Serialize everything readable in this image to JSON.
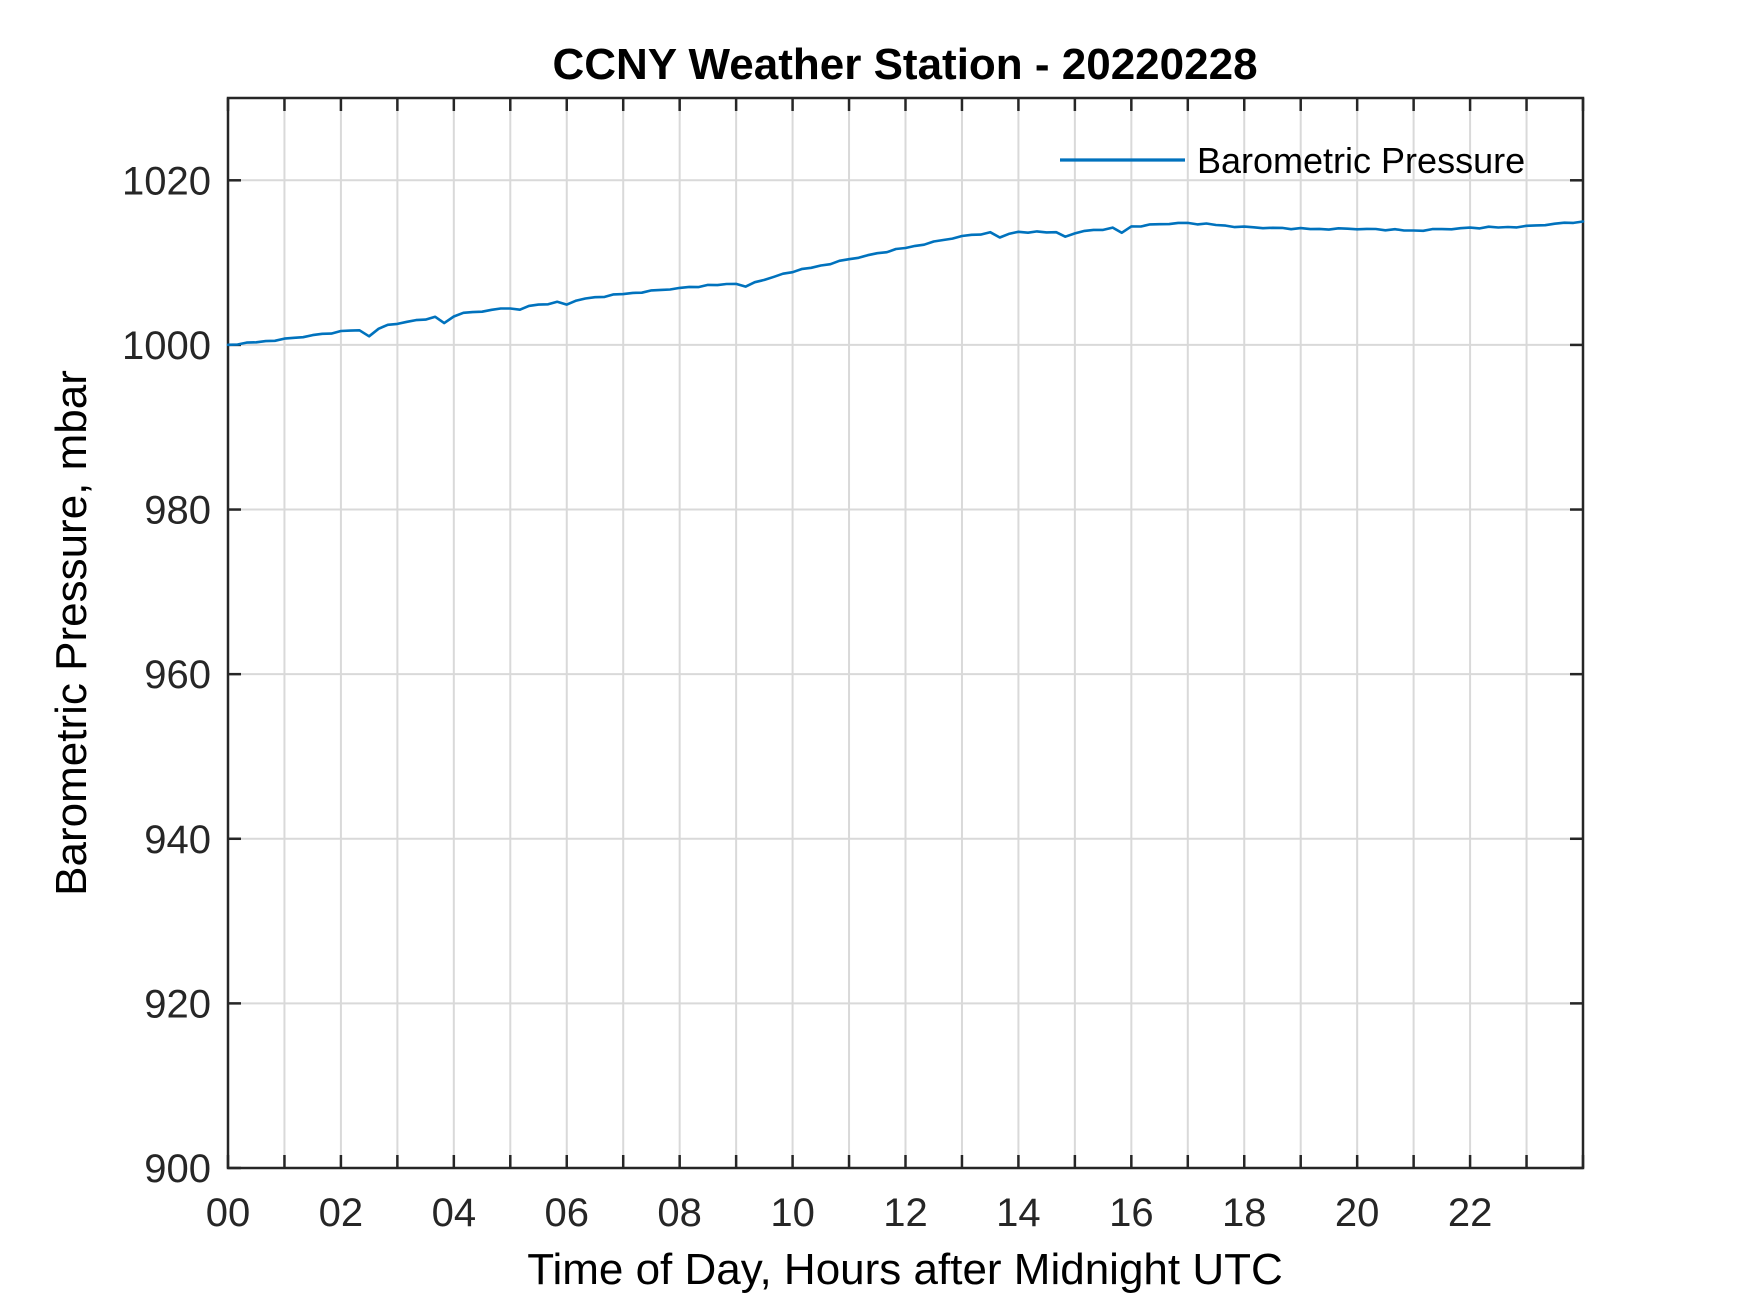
{
  "page": {
    "background_color": "#ffffff",
    "axes_color": "#262626",
    "grid_color": "#d9d9d9"
  },
  "chart_data": {
    "type": "line",
    "title": "CCNY Weather Station - 20220228",
    "xlabel": "Time of Day, Hours after Midnight UTC",
    "ylabel": "Barometric Pressure, mbar",
    "xlim": [
      0,
      24
    ],
    "ylim": [
      900,
      1030
    ],
    "grid": true,
    "legend_position": "top-right-inside",
    "x_tick_values": [
      0,
      1,
      2,
      3,
      4,
      5,
      6,
      7,
      8,
      9,
      10,
      11,
      12,
      13,
      14,
      15,
      16,
      17,
      18,
      19,
      20,
      21,
      22,
      23,
      24
    ],
    "x_label_ticks": {
      "values": [
        0,
        2,
        4,
        6,
        8,
        10,
        12,
        14,
        16,
        18,
        20,
        22
      ],
      "labels": [
        "00",
        "02",
        "04",
        "06",
        "08",
        "10",
        "12",
        "14",
        "16",
        "18",
        "20",
        "22"
      ]
    },
    "y_ticks": {
      "values": [
        900,
        920,
        940,
        960,
        980,
        1000,
        1020
      ],
      "labels": [
        "900",
        "920",
        "940",
        "960",
        "980",
        "1000",
        "1020"
      ]
    },
    "series": [
      {
        "name": "Barometric Pressure",
        "color": "#0072BD",
        "x": [
          0,
          0.17,
          0.33,
          0.5,
          0.67,
          0.83,
          1,
          1.17,
          1.33,
          1.5,
          1.67,
          1.83,
          2,
          2.17,
          2.33,
          2.5,
          2.67,
          2.83,
          3,
          3.17,
          3.33,
          3.5,
          3.67,
          3.83,
          4,
          4.17,
          4.33,
          4.5,
          4.67,
          4.83,
          5,
          5.17,
          5.33,
          5.5,
          5.67,
          5.83,
          6,
          6.17,
          6.33,
          6.5,
          6.67,
          6.83,
          7,
          7.17,
          7.33,
          7.5,
          7.67,
          7.83,
          8,
          8.17,
          8.33,
          8.5,
          8.67,
          8.83,
          9,
          9.17,
          9.33,
          9.5,
          9.67,
          9.83,
          10,
          10.17,
          10.33,
          10.5,
          10.67,
          10.83,
          11,
          11.17,
          11.33,
          11.5,
          11.67,
          11.83,
          12,
          12.17,
          12.33,
          12.5,
          12.67,
          12.83,
          13,
          13.17,
          13.33,
          13.5,
          13.67,
          13.83,
          14,
          14.17,
          14.33,
          14.5,
          14.67,
          14.83,
          15,
          15.17,
          15.33,
          15.5,
          15.67,
          15.83,
          16,
          16.17,
          16.33,
          16.5,
          16.67,
          16.83,
          17,
          17.17,
          17.33,
          17.5,
          17.67,
          17.83,
          18,
          18.17,
          18.33,
          18.5,
          18.67,
          18.83,
          19,
          19.17,
          19.33,
          19.5,
          19.67,
          19.83,
          20,
          20.17,
          20.33,
          20.5,
          20.67,
          20.83,
          21,
          21.17,
          21.33,
          21.5,
          21.67,
          21.83,
          22,
          22.17,
          22.33,
          22.5,
          22.67,
          22.83,
          23,
          23.17,
          23.33,
          23.5,
          23.67,
          23.83,
          24
        ],
        "y": [
          1000.02,
          1000.05,
          1000.28,
          1000.32,
          1000.47,
          1000.5,
          1000.77,
          1000.87,
          1000.94,
          1001.19,
          1001.35,
          1001.38,
          1001.69,
          1001.74,
          1001.78,
          1001.05,
          1001.97,
          1002.45,
          1002.55,
          1002.81,
          1003.02,
          1003.08,
          1003.42,
          1002.65,
          1003.45,
          1003.9,
          1003.99,
          1004.04,
          1004.27,
          1004.42,
          1004.43,
          1004.28,
          1004.74,
          1004.9,
          1004.94,
          1005.24,
          1004.9,
          1005.39,
          1005.64,
          1005.8,
          1005.83,
          1006.14,
          1006.17,
          1006.32,
          1006.34,
          1006.62,
          1006.69,
          1006.73,
          1006.93,
          1007.05,
          1007.03,
          1007.29,
          1007.27,
          1007.4,
          1007.41,
          1007.08,
          1007.62,
          1007.9,
          1008.28,
          1008.65,
          1008.83,
          1009.24,
          1009.37,
          1009.65,
          1009.81,
          1010.22,
          1010.42,
          1010.58,
          1010.9,
          1011.15,
          1011.26,
          1011.66,
          1011.77,
          1012.03,
          1012.18,
          1012.57,
          1012.75,
          1012.92,
          1013.23,
          1013.38,
          1013.4,
          1013.69,
          1013.05,
          1013.49,
          1013.75,
          1013.63,
          1013.79,
          1013.67,
          1013.7,
          1013.15,
          1013.55,
          1013.85,
          1013.98,
          1013.98,
          1014.26,
          1013.62,
          1014.4,
          1014.39,
          1014.64,
          1014.67,
          1014.68,
          1014.83,
          1014.82,
          1014.64,
          1014.75,
          1014.57,
          1014.5,
          1014.31,
          1014.37,
          1014.29,
          1014.18,
          1014.23,
          1014.22,
          1014.06,
          1014.19,
          1014.07,
          1014.1,
          1014.01,
          1014.17,
          1014.12,
          1014.05,
          1014.1,
          1014.08,
          1013.93,
          1014.06,
          1013.9,
          1013.9,
          1013.86,
          1014.07,
          1014.07,
          1014.05,
          1014.18,
          1014.25,
          1014.16,
          1014.36,
          1014.27,
          1014.33,
          1014.28,
          1014.47,
          1014.52,
          1014.55,
          1014.73,
          1014.85,
          1014.83,
          1015
        ]
      }
    ]
  },
  "legend": {
    "items": [
      {
        "label": "Barometric Pressure",
        "color": "#0072BD"
      }
    ]
  }
}
